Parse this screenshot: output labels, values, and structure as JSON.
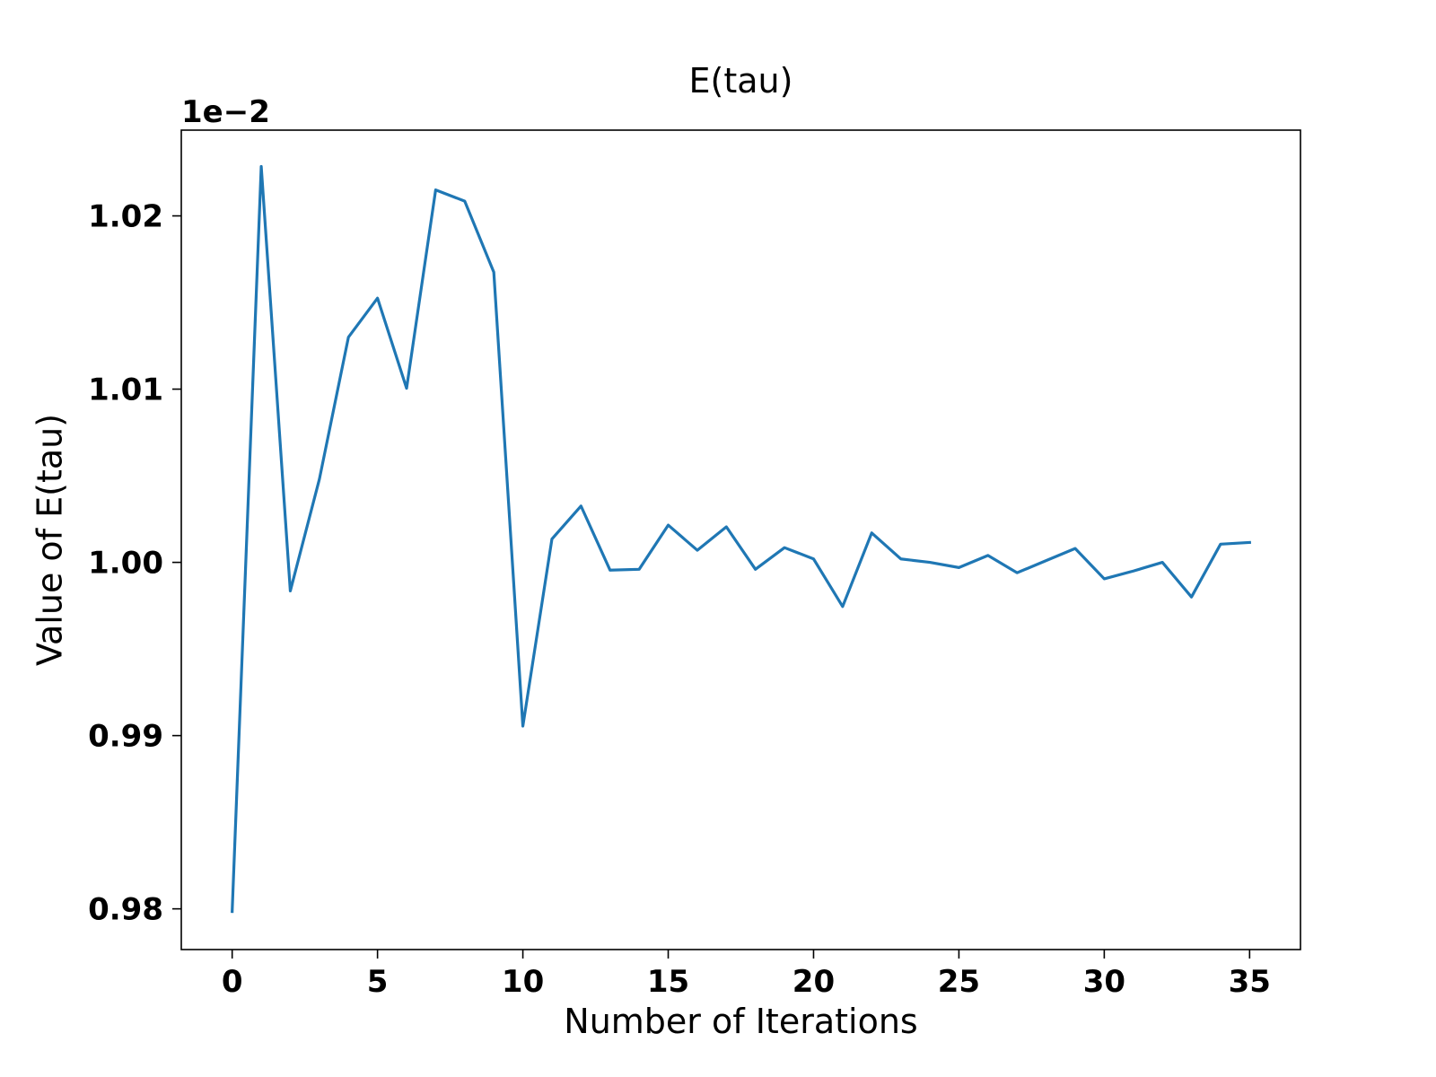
{
  "chart_data": {
    "type": "line",
    "title": "E(tau)",
    "xlabel": "Number of Iterations",
    "ylabel": "Value of E(tau)",
    "y_offset_label": "1e−2",
    "xlim": [
      -1.75,
      36.75
    ],
    "ylim": [
      0.97765,
      1.02495
    ],
    "x_ticks": [
      0,
      5,
      10,
      15,
      20,
      25,
      30,
      35
    ],
    "x_tick_labels": [
      "0",
      "5",
      "10",
      "15",
      "20",
      "25",
      "30",
      "35"
    ],
    "y_ticks": [
      0.98,
      0.99,
      1.0,
      1.01,
      1.02
    ],
    "y_tick_labels": [
      "0.98",
      "0.99",
      "1.00",
      "1.01",
      "1.02"
    ],
    "grid": false,
    "series": [
      {
        "color": "#1f77b4",
        "x": [
          0,
          1,
          2,
          3,
          4,
          5,
          6,
          7,
          8,
          9,
          10,
          11,
          12,
          13,
          14,
          15,
          16,
          17,
          18,
          19,
          20,
          21,
          22,
          23,
          24,
          25,
          26,
          27,
          28,
          29,
          30,
          31,
          32,
          33,
          34,
          35
        ],
        "y": [
          0.97985,
          1.02285,
          0.99835,
          1.0048,
          1.013,
          1.01525,
          1.01005,
          1.0215,
          1.02085,
          1.01675,
          0.99055,
          1.00135,
          1.00325,
          0.99955,
          0.9996,
          1.00215,
          1.0007,
          1.00205,
          0.9996,
          1.00085,
          1.0002,
          0.99745,
          1.0017,
          1.0002,
          1.0,
          0.9997,
          1.0004,
          0.9994,
          1.0001,
          1.0008,
          0.99905,
          0.9995,
          1.0,
          0.998,
          1.00105,
          1.00115
        ]
      }
    ]
  }
}
